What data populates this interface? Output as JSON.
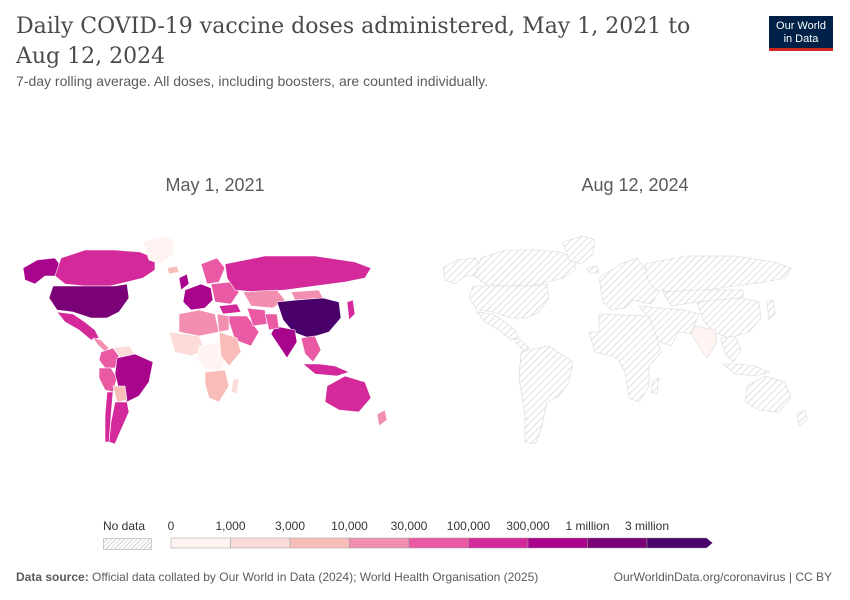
{
  "header": {
    "title": "Daily COVID-19 vaccine doses administered, May 1, 2021 to Aug 12, 2024",
    "subtitle": "7-day rolling average. All doses, including boosters, are counted individually.",
    "logo_line1": "Our World",
    "logo_line2": "in Data"
  },
  "maps": [
    {
      "title": "May 1, 2021",
      "regions": [
        {
          "name": "Alaska",
          "level": 6
        },
        {
          "name": "Canada",
          "level": 5
        },
        {
          "name": "Greenland",
          "level": 0
        },
        {
          "name": "United States",
          "level": 7
        },
        {
          "name": "Mexico",
          "level": 5
        },
        {
          "name": "Central America",
          "level": 3
        },
        {
          "name": "Colombia",
          "level": 4
        },
        {
          "name": "Venezuela",
          "level": 1
        },
        {
          "name": "Peru",
          "level": 4
        },
        {
          "name": "Brazil",
          "level": 6
        },
        {
          "name": "Bolivia",
          "level": 2
        },
        {
          "name": "Argentina",
          "level": 5
        },
        {
          "name": "Chile",
          "level": 5
        },
        {
          "name": "Iceland",
          "level": 2
        },
        {
          "name": "United Kingdom",
          "level": 6
        },
        {
          "name": "Western Europe",
          "level": 6
        },
        {
          "name": "Scandinavia",
          "level": 4
        },
        {
          "name": "Eastern Europe",
          "level": 4
        },
        {
          "name": "Russia",
          "level": 5
        },
        {
          "name": "Kazakhstan",
          "level": 3
        },
        {
          "name": "Mongolia",
          "level": 3
        },
        {
          "name": "China",
          "level": 8
        },
        {
          "name": "Japan",
          "level": 5
        },
        {
          "name": "Turkey",
          "level": 5
        },
        {
          "name": "Middle East",
          "level": 4
        },
        {
          "name": "Iran",
          "level": 4
        },
        {
          "name": "India",
          "level": 6
        },
        {
          "name": "Pakistan",
          "level": 4
        },
        {
          "name": "Southeast Asia",
          "level": 4
        },
        {
          "name": "Indonesia",
          "level": 5
        },
        {
          "name": "North Africa",
          "level": 3
        },
        {
          "name": "Egypt",
          "level": 3
        },
        {
          "name": "West Africa",
          "level": 1
        },
        {
          "name": "Central Africa",
          "level": 0
        },
        {
          "name": "East Africa",
          "level": 2
        },
        {
          "name": "Southern Africa",
          "level": 2
        },
        {
          "name": "Madagascar",
          "level": 1
        },
        {
          "name": "Australia",
          "level": 5
        },
        {
          "name": "New Zealand",
          "level": 3
        }
      ]
    },
    {
      "title": "Aug 12, 2024",
      "regions": [
        {
          "name": "India",
          "level": 0
        }
      ]
    }
  ],
  "legend": {
    "no_data_label": "No data",
    "bins": [
      "0",
      "1,000",
      "3,000",
      "10,000",
      "30,000",
      "100,000",
      "300,000",
      "1 million",
      "3 million"
    ],
    "colors": [
      "#fff4f1",
      "#fcdcd8",
      "#f8bdb8",
      "#f28fb1",
      "#ea5aa4",
      "#d3299a",
      "#a8048c",
      "#7a0177",
      "#49006a"
    ]
  },
  "footer": {
    "source_label": "Data source:",
    "source_text": "Official data collated by Our World in Data (2024); World Health Organisation (2025)",
    "url": "OurWorldinData.org/coronavirus",
    "separator": "|",
    "license": "CC BY"
  }
}
